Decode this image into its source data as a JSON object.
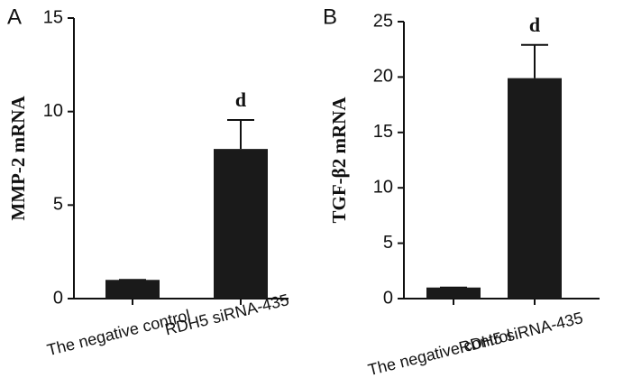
{
  "chart_data": [
    {
      "type": "bar",
      "panel": "A",
      "y_label": "MMP-2 mRNA",
      "categories": [
        "The negative control",
        "RDH5 siRNA-435"
      ],
      "values": [
        1,
        8
      ],
      "errors": [
        0,
        1.55
      ],
      "labels": [
        null,
        "d"
      ],
      "color": "#1a1a1a",
      "ylim": [
        0,
        15
      ],
      "yticks": [
        0,
        5,
        10,
        15
      ]
    },
    {
      "type": "bar",
      "panel": "B",
      "y_label": "TGF-β2 mRNA",
      "categories": [
        "The negative control",
        "RDH5 siRNA-435"
      ],
      "values": [
        1,
        19.9
      ],
      "errors": [
        0,
        3
      ],
      "labels": [
        null,
        "d"
      ],
      "color": "#1a1a1a",
      "ylim": [
        0,
        25
      ],
      "yticks": [
        0,
        5,
        10,
        15,
        20,
        25
      ]
    }
  ]
}
